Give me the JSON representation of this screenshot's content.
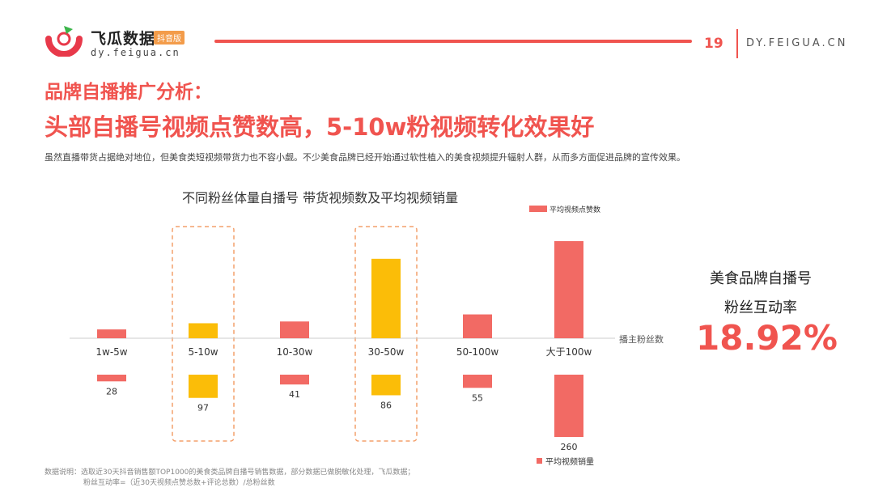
{
  "header": {
    "brand_name": "飞瓜数据",
    "brand_tag": "抖音版",
    "brand_url": "dy.feigua.cn",
    "page_number": "19",
    "site": "DY.FEIGUA.CN"
  },
  "heading": {
    "title1": "品牌自播推广分析：",
    "title2": "头部自播号视频点赞数高，5-10w粉视频转化效果好",
    "description": "虽然直播带货占据绝对地位，但美食类短视频带货力也不容小觑。不少美食品牌已经开始通过软性植入的美食视频提升辐射人群，从而多方面促进品牌的宣传效果。"
  },
  "side": {
    "label1": "美食品牌自播号",
    "label2": "粉丝互动率",
    "rate": "18.92%"
  },
  "footer": {
    "line1": "数据说明：选取近30天抖音销售额TOP1000的美食类品牌自播号销售数据，部分数据已做脱敏化处理，飞瓜数据；",
    "line2": "粉丝互动率=（近30天视频点赞总数+评论总数）/总粉丝数"
  },
  "colors": {
    "red": "#f26a64",
    "highlight": "#fbbd08",
    "accent": "#f0544f"
  },
  "chart_data": {
    "type": "bar",
    "title": "不同粉丝体量自播号 带货视频数及平均视频销量",
    "xlabel": "播主粉丝数",
    "categories": [
      "1w-5w",
      "5-10w",
      "10-30w",
      "30-50w",
      "50-100w",
      "大于100w"
    ],
    "highlighted": [
      1,
      3
    ],
    "series": [
      {
        "name": "平均视频点赞数",
        "values": [
          10,
          17,
          19,
          90,
          27,
          110
        ]
      },
      {
        "name": "平均视频销量",
        "values": [
          28,
          97,
          41,
          86,
          55,
          260
        ],
        "labels": [
          "28",
          "97",
          "41",
          "86",
          "55",
          "260"
        ]
      }
    ]
  }
}
